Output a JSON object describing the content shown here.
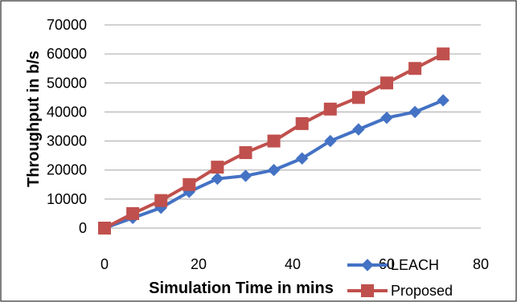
{
  "chart_data": {
    "type": "line",
    "xlabel": "Simulation Time in mins",
    "ylabel": "Throughput in b/s",
    "xlim": [
      0,
      80
    ],
    "ylim": [
      0,
      70000
    ],
    "xticks": [
      "0",
      "20",
      "40",
      "60",
      "80"
    ],
    "yticks": [
      "0",
      "10000",
      "20000",
      "30000",
      "40000",
      "50000",
      "60000",
      "70000"
    ],
    "grid": "horizontal",
    "legend_position": "bottom-right",
    "series": [
      {
        "name": "LEACH",
        "color": "#4472C4",
        "marker": "diamond",
        "x": [
          0,
          6,
          12,
          18,
          24,
          30,
          36,
          42,
          48,
          54,
          60,
          66,
          72
        ],
        "y": [
          0,
          3500,
          7000,
          12500,
          17000,
          18000,
          20000,
          24000,
          30000,
          34000,
          38000,
          40000,
          44000
        ]
      },
      {
        "name": "Proposed",
        "color": "#C0504D",
        "marker": "square",
        "x": [
          0,
          6,
          12,
          18,
          24,
          30,
          36,
          42,
          48,
          54,
          60,
          66,
          72
        ],
        "y": [
          0,
          5000,
          9500,
          15000,
          21000,
          26000,
          30000,
          36000,
          41000,
          45000,
          50000,
          55000,
          60000
        ]
      }
    ]
  }
}
